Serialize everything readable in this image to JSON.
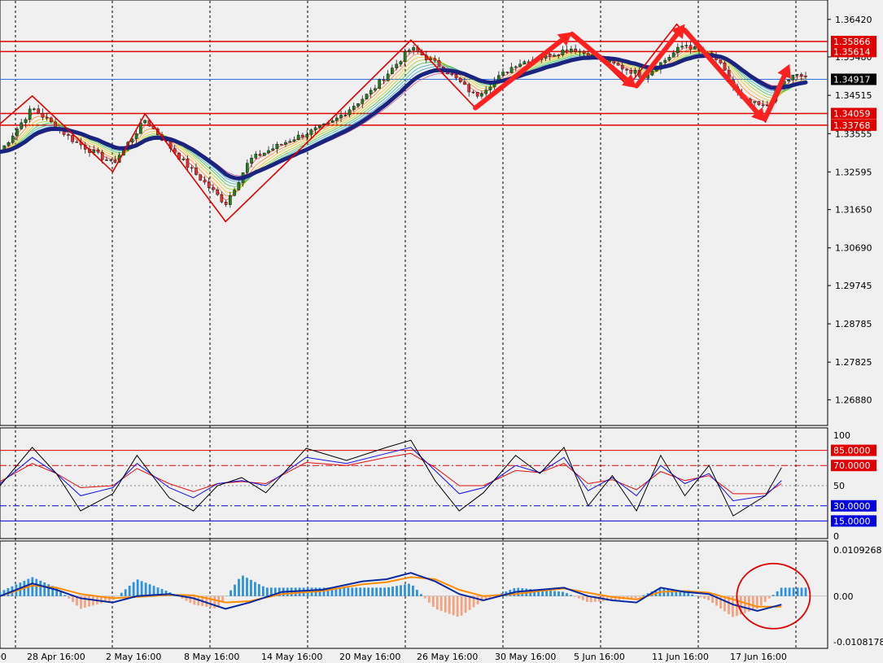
{
  "colors": {
    "background": "#f0f0f0",
    "level_line": "#e00000",
    "current_price": "#3070e0",
    "bull_candle": "#208020",
    "bear_candle": "#e03030",
    "ema_slow": "#1a237e",
    "arrow": "#ff2020",
    "rsi_black": "#000000",
    "rsi_blue": "#1010ee",
    "rsi_red": "#e01010",
    "hist_pos": "#3090e0",
    "hist_neg": "#f4a382",
    "macd_main": "#0a2aa0",
    "macd_signal": "#ff8c00"
  },
  "chart_data": [
    {
      "type": "candlestick",
      "pane": "price",
      "ylim": [
        1.264,
        1.366
      ],
      "x_labels": [
        "28 Apr 16:00",
        "2 May 16:00",
        "8 May 16:00",
        "14 May 16:00",
        "20 May 16:00",
        "26 May 16:00",
        "30 May 16:00",
        "5 Jun 16:00",
        "11 Jun 16:00",
        "17 Jun 16:00"
      ],
      "y_ticks": [
        "1.36420",
        "1.35480",
        "1.34515",
        "1.33555",
        "1.32595",
        "1.31650",
        "1.30690",
        "1.29745",
        "1.28785",
        "1.27825",
        "1.26880"
      ],
      "levels": [
        {
          "label": "1.35866",
          "value": 1.35866,
          "boxed": true
        },
        {
          "label": "1.35614",
          "value": 1.35614,
          "boxed": true
        },
        {
          "label": "1.34059",
          "value": 1.34059,
          "boxed": true
        },
        {
          "label": "1.33768",
          "value": 1.33768,
          "boxed": true
        }
      ],
      "current_price": {
        "label": "1.34917",
        "value": 1.34917
      },
      "zigzag": [
        [
          0,
          1.338
        ],
        [
          0.04,
          1.345
        ],
        [
          0.14,
          1.326
        ],
        [
          0.18,
          1.3405
        ],
        [
          0.28,
          1.3135
        ],
        [
          0.41,
          1.339
        ],
        [
          0.51,
          1.359
        ],
        [
          0.59,
          1.342
        ],
        [
          0.71,
          1.361
        ],
        [
          0.78,
          1.3475
        ],
        [
          0.84,
          1.363
        ],
        [
          0.95,
          1.3385
        ],
        [
          0.97,
          1.347
        ]
      ],
      "arrows": [
        [
          0.59,
          1.342,
          0.71,
          1.361
        ],
        [
          0.71,
          1.3605,
          0.79,
          1.347
        ],
        [
          0.79,
          1.3475,
          0.85,
          1.363
        ],
        [
          0.85,
          1.3615,
          0.95,
          1.3385
        ],
        [
          0.95,
          1.3395,
          0.98,
          1.353
        ]
      ],
      "price_path": [
        [
          0,
          1.331
        ],
        [
          0.04,
          1.342
        ],
        [
          0.09,
          1.334
        ],
        [
          0.14,
          1.328
        ],
        [
          0.18,
          1.339
        ],
        [
          0.23,
          1.328
        ],
        [
          0.28,
          1.318
        ],
        [
          0.31,
          1.329
        ],
        [
          0.36,
          1.334
        ],
        [
          0.41,
          1.338
        ],
        [
          0.46,
          1.346
        ],
        [
          0.51,
          1.357
        ],
        [
          0.55,
          1.352
        ],
        [
          0.59,
          1.345
        ],
        [
          0.64,
          1.353
        ],
        [
          0.71,
          1.357
        ],
        [
          0.76,
          1.353
        ],
        [
          0.8,
          1.35
        ],
        [
          0.85,
          1.358
        ],
        [
          0.89,
          1.354
        ],
        [
          0.92,
          1.344
        ],
        [
          0.95,
          1.342
        ],
        [
          0.97,
          1.348
        ],
        [
          0.985,
          1.35
        ]
      ]
    },
    {
      "type": "line",
      "pane": "rsi",
      "ylim": [
        0,
        100
      ],
      "y_ticks": [
        "100",
        "50",
        "0"
      ],
      "levels": [
        {
          "label": "85.0000",
          "value": 85,
          "style": "solid",
          "color": "#e00000"
        },
        {
          "label": "70.0000",
          "value": 70,
          "style": "dash",
          "color": "#e00000"
        },
        {
          "label": "30.0000",
          "value": 30,
          "style": "dash",
          "color": "#0000e0"
        },
        {
          "label": "15.0000",
          "value": 15,
          "style": "solid",
          "color": "#0000e0"
        }
      ],
      "mid_level": 50,
      "series_black": [
        [
          0,
          50
        ],
        [
          0.04,
          88
        ],
        [
          0.07,
          62
        ],
        [
          0.1,
          25
        ],
        [
          0.14,
          42
        ],
        [
          0.17,
          80
        ],
        [
          0.21,
          38
        ],
        [
          0.24,
          25
        ],
        [
          0.27,
          50
        ],
        [
          0.3,
          58
        ],
        [
          0.33,
          43
        ],
        [
          0.38,
          87
        ],
        [
          0.43,
          75
        ],
        [
          0.48,
          88
        ],
        [
          0.51,
          95
        ],
        [
          0.54,
          55
        ],
        [
          0.57,
          25
        ],
        [
          0.6,
          43
        ],
        [
          0.64,
          80
        ],
        [
          0.67,
          62
        ],
        [
          0.7,
          88
        ],
        [
          0.73,
          30
        ],
        [
          0.76,
          60
        ],
        [
          0.79,
          25
        ],
        [
          0.82,
          80
        ],
        [
          0.85,
          40
        ],
        [
          0.88,
          70
        ],
        [
          0.91,
          20
        ],
        [
          0.95,
          40
        ],
        [
          0.97,
          68
        ]
      ],
      "series_blue": [
        [
          0,
          52
        ],
        [
          0.04,
          78
        ],
        [
          0.07,
          62
        ],
        [
          0.1,
          40
        ],
        [
          0.14,
          48
        ],
        [
          0.17,
          72
        ],
        [
          0.21,
          48
        ],
        [
          0.24,
          38
        ],
        [
          0.27,
          52
        ],
        [
          0.3,
          55
        ],
        [
          0.33,
          50
        ],
        [
          0.38,
          78
        ],
        [
          0.43,
          72
        ],
        [
          0.48,
          82
        ],
        [
          0.51,
          88
        ],
        [
          0.54,
          65
        ],
        [
          0.57,
          42
        ],
        [
          0.6,
          48
        ],
        [
          0.64,
          70
        ],
        [
          0.67,
          63
        ],
        [
          0.7,
          78
        ],
        [
          0.73,
          45
        ],
        [
          0.76,
          58
        ],
        [
          0.79,
          40
        ],
        [
          0.82,
          70
        ],
        [
          0.85,
          52
        ],
        [
          0.88,
          62
        ],
        [
          0.91,
          35
        ],
        [
          0.95,
          40
        ],
        [
          0.97,
          55
        ]
      ],
      "series_red": [
        [
          0,
          54
        ],
        [
          0.04,
          72
        ],
        [
          0.07,
          62
        ],
        [
          0.1,
          48
        ],
        [
          0.14,
          50
        ],
        [
          0.17,
          67
        ],
        [
          0.21,
          52
        ],
        [
          0.24,
          44
        ],
        [
          0.27,
          52
        ],
        [
          0.3,
          54
        ],
        [
          0.33,
          52
        ],
        [
          0.38,
          73
        ],
        [
          0.43,
          70
        ],
        [
          0.48,
          78
        ],
        [
          0.51,
          82
        ],
        [
          0.54,
          68
        ],
        [
          0.57,
          50
        ],
        [
          0.6,
          50
        ],
        [
          0.64,
          65
        ],
        [
          0.67,
          63
        ],
        [
          0.7,
          72
        ],
        [
          0.73,
          52
        ],
        [
          0.76,
          56
        ],
        [
          0.79,
          46
        ],
        [
          0.82,
          64
        ],
        [
          0.85,
          55
        ],
        [
          0.88,
          60
        ],
        [
          0.91,
          42
        ],
        [
          0.95,
          42
        ],
        [
          0.97,
          52
        ]
      ]
    },
    {
      "type": "bar",
      "pane": "macd",
      "ylim": [
        -0.0108178,
        0.0109268
      ],
      "y_ticks": [
        "0.0109268",
        "0.00",
        "-0.0108178"
      ],
      "histogram": [
        [
          0,
          0.001
        ],
        [
          0.04,
          0.0045
        ],
        [
          0.07,
          0.002
        ],
        [
          0.1,
          -0.003
        ],
        [
          0.14,
          -0.001
        ],
        [
          0.17,
          0.004
        ],
        [
          0.21,
          0.001
        ],
        [
          0.24,
          -0.002
        ],
        [
          0.27,
          -0.003
        ],
        [
          0.3,
          0.005
        ],
        [
          0.33,
          0.002
        ],
        [
          0.38,
          0.002
        ],
        [
          0.43,
          0.002
        ],
        [
          0.48,
          0.002
        ],
        [
          0.51,
          0.003
        ],
        [
          0.54,
          -0.003
        ],
        [
          0.57,
          -0.005
        ],
        [
          0.6,
          -0.001
        ],
        [
          0.64,
          0.002
        ],
        [
          0.67,
          0.0015
        ],
        [
          0.7,
          0.001
        ],
        [
          0.73,
          -0.0015
        ],
        [
          0.76,
          -0.001
        ],
        [
          0.79,
          -0.0005
        ],
        [
          0.82,
          0.002
        ],
        [
          0.85,
          0.001
        ],
        [
          0.88,
          -0.001
        ],
        [
          0.91,
          -0.005
        ],
        [
          0.94,
          -0.003
        ],
        [
          0.97,
          0.002
        ]
      ],
      "macd_line": [
        [
          0,
          0.0
        ],
        [
          0.04,
          0.003
        ],
        [
          0.07,
          0.0015
        ],
        [
          0.1,
          -0.0005
        ],
        [
          0.14,
          -0.0015
        ],
        [
          0.17,
          0.0
        ],
        [
          0.21,
          0.0005
        ],
        [
          0.24,
          -0.0005
        ],
        [
          0.28,
          -0.003
        ],
        [
          0.31,
          -0.0015
        ],
        [
          0.35,
          0.001
        ],
        [
          0.4,
          0.0015
        ],
        [
          0.45,
          0.0035
        ],
        [
          0.48,
          0.004
        ],
        [
          0.51,
          0.0055
        ],
        [
          0.54,
          0.0035
        ],
        [
          0.57,
          0.0005
        ],
        [
          0.6,
          -0.001
        ],
        [
          0.64,
          0.001
        ],
        [
          0.67,
          0.0015
        ],
        [
          0.7,
          0.002
        ],
        [
          0.73,
          0.0
        ],
        [
          0.76,
          -0.001
        ],
        [
          0.79,
          -0.0015
        ],
        [
          0.82,
          0.002
        ],
        [
          0.85,
          0.001
        ],
        [
          0.88,
          0.0005
        ],
        [
          0.91,
          -0.002
        ],
        [
          0.94,
          -0.0035
        ],
        [
          0.97,
          -0.002
        ]
      ],
      "signal_line": [
        [
          0,
          0.0
        ],
        [
          0.04,
          0.0025
        ],
        [
          0.07,
          0.002
        ],
        [
          0.1,
          0.0005
        ],
        [
          0.14,
          -0.0005
        ],
        [
          0.17,
          -0.0002
        ],
        [
          0.21,
          0.0003
        ],
        [
          0.24,
          0.0002
        ],
        [
          0.28,
          -0.0015
        ],
        [
          0.31,
          -0.0012
        ],
        [
          0.35,
          0.0005
        ],
        [
          0.4,
          0.0012
        ],
        [
          0.45,
          0.0028
        ],
        [
          0.48,
          0.0033
        ],
        [
          0.51,
          0.0045
        ],
        [
          0.54,
          0.004
        ],
        [
          0.57,
          0.0015
        ],
        [
          0.6,
          0.0
        ],
        [
          0.64,
          0.0005
        ],
        [
          0.67,
          0.0012
        ],
        [
          0.7,
          0.0018
        ],
        [
          0.73,
          0.0008
        ],
        [
          0.76,
          -0.0002
        ],
        [
          0.79,
          -0.0008
        ],
        [
          0.82,
          0.001
        ],
        [
          0.85,
          0.0012
        ],
        [
          0.88,
          0.0008
        ],
        [
          0.91,
          -0.0008
        ],
        [
          0.94,
          -0.0025
        ],
        [
          0.97,
          -0.0025
        ]
      ],
      "highlight": {
        "shape": "circle",
        "x": 0.96,
        "value": 0.0
      }
    }
  ]
}
